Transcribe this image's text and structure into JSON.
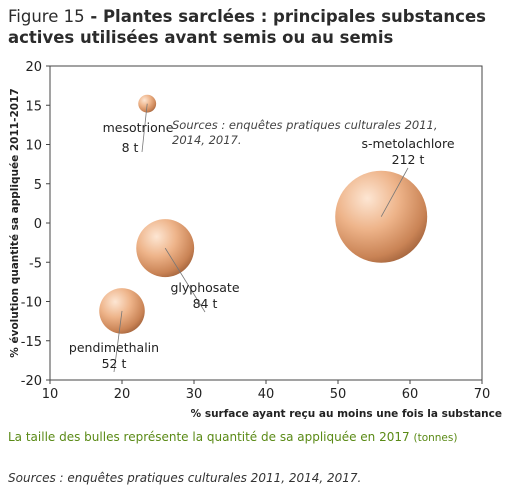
{
  "title": {
    "lead": "Figure 15",
    "main": "Plantes sarclées : principales substances actives utilisées avant semis ou au semis"
  },
  "bubble_note": {
    "text": "La taille des bulles représente la quantité de sa appliquée en 2017",
    "unit": "(tonnes)"
  },
  "footer_source": "Sources : enquêtes pratiques culturales 2011, 2014, 2017.",
  "chart_data": {
    "type": "scatter",
    "subtype": "bubble",
    "xlabel": "% surface ayant reçu au moins une fois la substance",
    "ylabel": "% évolution quantité sa appliquée 2011-2017",
    "xlim": [
      10,
      70
    ],
    "ylim": [
      -20,
      20
    ],
    "xticks": [
      10,
      20,
      30,
      40,
      50,
      60,
      70
    ],
    "yticks": [
      -20,
      -15,
      -10,
      -5,
      0,
      5,
      10,
      15,
      20
    ],
    "grid": false,
    "annotation": [
      "Sources : enquêtes pratiques culturales 2011,",
      "2014, 2017."
    ],
    "bubble_color": "#e8a87c",
    "points": [
      {
        "name": "mesotrione",
        "x": 23.5,
        "y": 15.2,
        "size": 8,
        "size_label": "8 t"
      },
      {
        "name": "s-metolachlore",
        "x": 56,
        "y": 0.8,
        "size": 212,
        "size_label": "212 t"
      },
      {
        "name": "glyphosate",
        "x": 26,
        "y": -3.2,
        "size": 84,
        "size_label": "84 t"
      },
      {
        "name": "pendimethalin",
        "x": 20,
        "y": -11.2,
        "size": 52,
        "size_label": "52 t"
      }
    ]
  }
}
